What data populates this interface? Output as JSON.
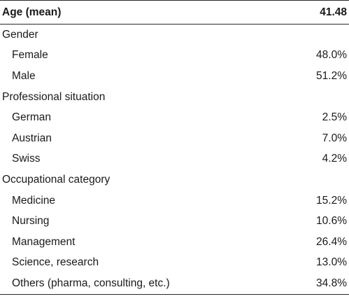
{
  "header": {
    "label": "Age (mean)",
    "value": "41.48"
  },
  "groups": [
    {
      "title": "Gender",
      "items": [
        {
          "label": "Female",
          "value": "48.0%"
        },
        {
          "label": "Male",
          "value": "51.2%"
        }
      ]
    },
    {
      "title": "Professional situation",
      "items": [
        {
          "label": "German",
          "value": "2.5%"
        },
        {
          "label": "Austrian",
          "value": "7.0%"
        },
        {
          "label": "Swiss",
          "value": "4.2%"
        }
      ]
    },
    {
      "title": "Occupational category",
      "items": [
        {
          "label": "Medicine",
          "value": "15.2%"
        },
        {
          "label": "Nursing",
          "value": "10.6%"
        },
        {
          "label": "Management",
          "value": "26.4%"
        },
        {
          "label": "Science, research",
          "value": "13.0%"
        },
        {
          "label": "Others (pharma, consulting, etc.)",
          "value": "34.8%"
        }
      ]
    }
  ]
}
